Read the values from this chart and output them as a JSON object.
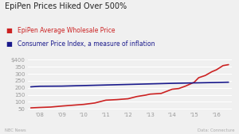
{
  "title": "EpiPen Prices Hiked Over 500%",
  "source_left": "NBC News",
  "source_right": "Data: Connecture",
  "epipen_color": "#cc2222",
  "cpi_color": "#1a1a8c",
  "background_color": "#f0f0f0",
  "epipen_years": [
    2007.6,
    2008.0,
    2008.5,
    2009.0,
    2009.5,
    2010.0,
    2010.5,
    2011.0,
    2011.5,
    2012.0,
    2012.4,
    2012.8,
    2013.0,
    2013.5,
    2014.0,
    2014.3,
    2014.6,
    2015.0,
    2015.2,
    2015.5,
    2015.8,
    2016.0,
    2016.3,
    2016.55
  ],
  "epipen_values": [
    57,
    60,
    63,
    70,
    76,
    82,
    92,
    112,
    116,
    122,
    138,
    148,
    155,
    160,
    190,
    195,
    212,
    240,
    272,
    288,
    315,
    328,
    358,
    365
  ],
  "cpi_years": [
    2007.6,
    2008.0,
    2009.0,
    2010.0,
    2011.0,
    2012.0,
    2013.0,
    2014.0,
    2015.0,
    2016.0,
    2016.55
  ],
  "cpi_values": [
    207,
    211,
    212,
    216,
    220,
    224,
    228,
    232,
    235,
    238,
    240
  ],
  "ytick_positions": [
    50,
    100,
    150,
    200,
    250,
    300,
    350,
    400
  ],
  "ytick_labels": [
    "50",
    "100",
    "150",
    "200",
    "250",
    "300",
    "350",
    "$400"
  ],
  "ylim": [
    38,
    415
  ],
  "xlim": [
    2007.45,
    2016.7
  ],
  "xtick_positions": [
    2008,
    2009,
    2010,
    2011,
    2012,
    2013,
    2014,
    2015,
    2016
  ],
  "xtick_labels": [
    "'08",
    "'09",
    "'10",
    "'11",
    "'12",
    "'13",
    "'14",
    "'15",
    "'16"
  ]
}
